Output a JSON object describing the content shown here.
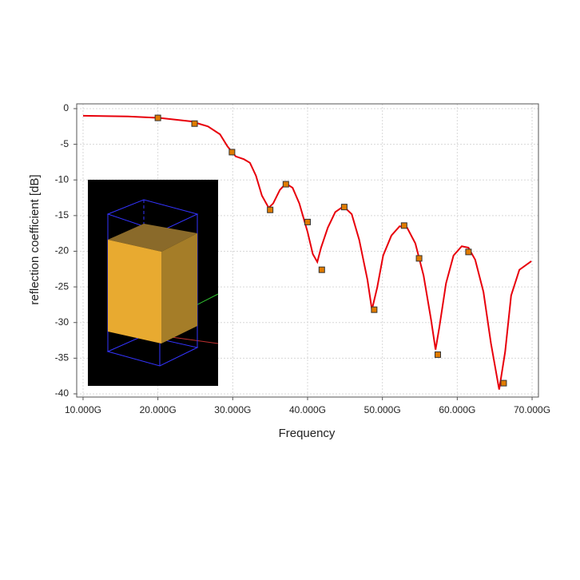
{
  "chart_data": {
    "type": "line",
    "x_label": "Frequency",
    "y_label": "reflection coefficient [dB]",
    "xlim": [
      9.15,
      70.85
    ],
    "ylim": [
      -40.45,
      0.67
    ],
    "xticks": [
      {
        "value": 10,
        "label": "10.000G"
      },
      {
        "value": 20,
        "label": "20.000G"
      },
      {
        "value": 30,
        "label": "30.000G"
      },
      {
        "value": 40,
        "label": "40.000G"
      },
      {
        "value": 50,
        "label": "50.000G"
      },
      {
        "value": 60,
        "label": "60.000G"
      },
      {
        "value": 70,
        "label": "70.000G"
      }
    ],
    "yticks": [
      0,
      -5,
      -10,
      -15,
      -20,
      -25,
      -30,
      -35,
      -40
    ],
    "grid": true,
    "series": [
      {
        "style": "line",
        "color": "#e8000b",
        "x": [
          10,
          16,
          20.25,
          24.5,
          26.7,
          28.3,
          29.3,
          30.4,
          31.5,
          32.3,
          33.1,
          33.9,
          34.8,
          35.4,
          36.3,
          37.1,
          38,
          38.9,
          40,
          40.7,
          41.3,
          41.8,
          42.7,
          43.7,
          44.8,
          45.9,
          46.9,
          48,
          48.6,
          49.3,
          50.1,
          51.2,
          52.3,
          53.3,
          54.4,
          55.5,
          56.5,
          57.1,
          57.6,
          58.5,
          59.5,
          60.6,
          61.5,
          62.4,
          63.5,
          64.5,
          65.6,
          66.4,
          67.2,
          68.3,
          69.9
        ],
        "values": [
          -1.0,
          -1.1,
          -1.3,
          -1.8,
          -2.5,
          -3.6,
          -5.3,
          -6.7,
          -7.1,
          -7.6,
          -9.4,
          -12.2,
          -13.9,
          -13.3,
          -11.4,
          -10.5,
          -11.1,
          -13.3,
          -17.3,
          -20.4,
          -21.5,
          -19.5,
          -16.7,
          -14.5,
          -13.7,
          -14.8,
          -18.4,
          -24.0,
          -28.2,
          -25.1,
          -20.6,
          -17.8,
          -16.5,
          -16.7,
          -18.9,
          -23.4,
          -29.6,
          -33.8,
          -30.7,
          -24.5,
          -20.6,
          -19.3,
          -19.5,
          -21.2,
          -25.7,
          -32.9,
          -39.4,
          -34.1,
          -26.2,
          -22.6,
          -21.4
        ]
      },
      {
        "style": "markers",
        "color": "#e07b00",
        "x": [
          20.0,
          24.9,
          29.9,
          35.0,
          37.1,
          40.0,
          41.9,
          44.9,
          48.9,
          52.9,
          54.9,
          57.4,
          61.5,
          66.2
        ],
        "values": [
          -1.3,
          -2.1,
          -6.1,
          -14.2,
          -10.6,
          -15.9,
          -22.6,
          -13.8,
          -28.2,
          -16.4,
          -21.0,
          -34.5,
          -20.1,
          -38.5
        ]
      }
    ]
  }
}
